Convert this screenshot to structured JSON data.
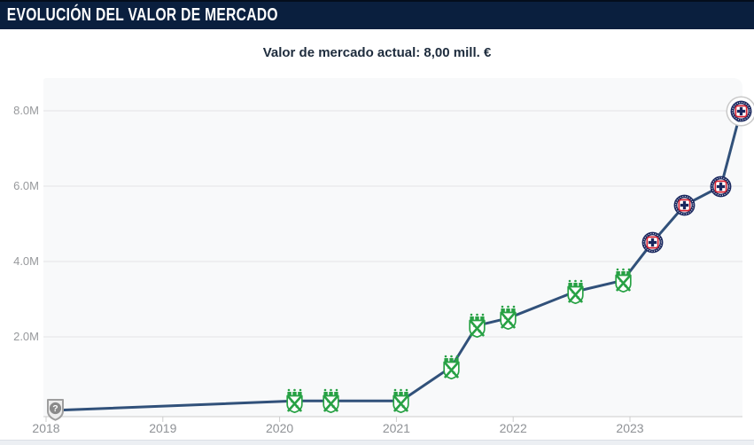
{
  "header": {
    "title": "EVOLUCIÓN DEL VALOR DE MERCADO"
  },
  "subtitle": {
    "text": "Valor de mercado actual: 8,00 mill. €"
  },
  "colors": {
    "header_bg": "#0a1f3e",
    "line": "#31517a",
    "nacional_green": "#27a144",
    "cruz_azul_navy": "#19275e",
    "cruz_azul_red": "#d42332",
    "grid": "#e3e4e6",
    "axis": "#cccccc"
  },
  "chart_data": {
    "type": "line",
    "title": "Evolución del valor de mercado",
    "current_value_label": "8,00 mill. €",
    "grid": true,
    "legend": "none",
    "line_color": "#31517a",
    "x_axis": {
      "ticks": [
        {
          "value": 2018,
          "label": "2018"
        },
        {
          "value": 2019,
          "label": "2019"
        },
        {
          "value": 2020,
          "label": "2020"
        },
        {
          "value": 2021,
          "label": "2021"
        },
        {
          "value": 2022,
          "label": "2022"
        },
        {
          "value": 2023,
          "label": "2023"
        }
      ],
      "range": [
        2017.95,
        2024.0
      ]
    },
    "y_axis": {
      "unit": "mill. €",
      "ticks": [
        {
          "value": 2,
          "label": "2.0M"
        },
        {
          "value": 4,
          "label": "4.0M"
        },
        {
          "value": 6,
          "label": "6.0M"
        },
        {
          "value": 8,
          "label": "8.0M"
        }
      ],
      "range_mill": [
        0,
        8.9
      ]
    },
    "points": [
      {
        "x": 2018.08,
        "value_mill": 0.05,
        "club_badge": "unknown-club",
        "highlight": false
      },
      {
        "x": 2020.13,
        "value_mill": 0.3,
        "club_badge": "atletico-nacional",
        "highlight": false
      },
      {
        "x": 2020.44,
        "value_mill": 0.3,
        "club_badge": "atletico-nacional",
        "highlight": false
      },
      {
        "x": 2021.04,
        "value_mill": 0.3,
        "club_badge": "atletico-nacional",
        "highlight": false
      },
      {
        "x": 2021.47,
        "value_mill": 1.2,
        "club_badge": "atletico-nacional",
        "highlight": false
      },
      {
        "x": 2021.69,
        "value_mill": 2.3,
        "club_badge": "atletico-nacional",
        "highlight": false
      },
      {
        "x": 2021.96,
        "value_mill": 2.5,
        "club_badge": "atletico-nacional",
        "highlight": false
      },
      {
        "x": 2022.53,
        "value_mill": 3.2,
        "club_badge": "atletico-nacional",
        "highlight": false
      },
      {
        "x": 2022.94,
        "value_mill": 3.5,
        "club_badge": "atletico-nacional",
        "highlight": false
      },
      {
        "x": 2023.19,
        "value_mill": 4.5,
        "club_badge": "cruz-azul",
        "highlight": false
      },
      {
        "x": 2023.47,
        "value_mill": 5.5,
        "club_badge": "cruz-azul",
        "highlight": false
      },
      {
        "x": 2023.78,
        "value_mill": 6.0,
        "club_badge": "cruz-azul",
        "highlight": false
      },
      {
        "x": 2023.95,
        "value_mill": 8.0,
        "club_badge": "cruz-azul",
        "highlight": true
      }
    ]
  }
}
